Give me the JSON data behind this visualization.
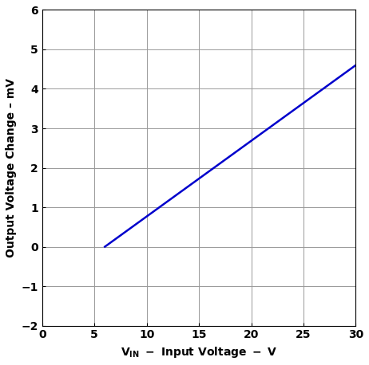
{
  "x_data": [
    6,
    30
  ],
  "y_data": [
    0,
    4.6
  ],
  "line_color": "#0000cc",
  "line_width": 1.8,
  "xlim": [
    0,
    30
  ],
  "ylim": [
    -2,
    6
  ],
  "xticks": [
    0,
    5,
    10,
    15,
    20,
    25,
    30
  ],
  "yticks": [
    -2,
    -1,
    0,
    1,
    2,
    3,
    4,
    5,
    6
  ],
  "ylabel": "Output Voltage Change – mV",
  "grid_color": "#999999",
  "grid_linewidth": 0.7,
  "background_color": "#ffffff",
  "tick_fontsize": 10,
  "label_fontsize": 10,
  "font_weight": "bold",
  "font_family": "Arial"
}
